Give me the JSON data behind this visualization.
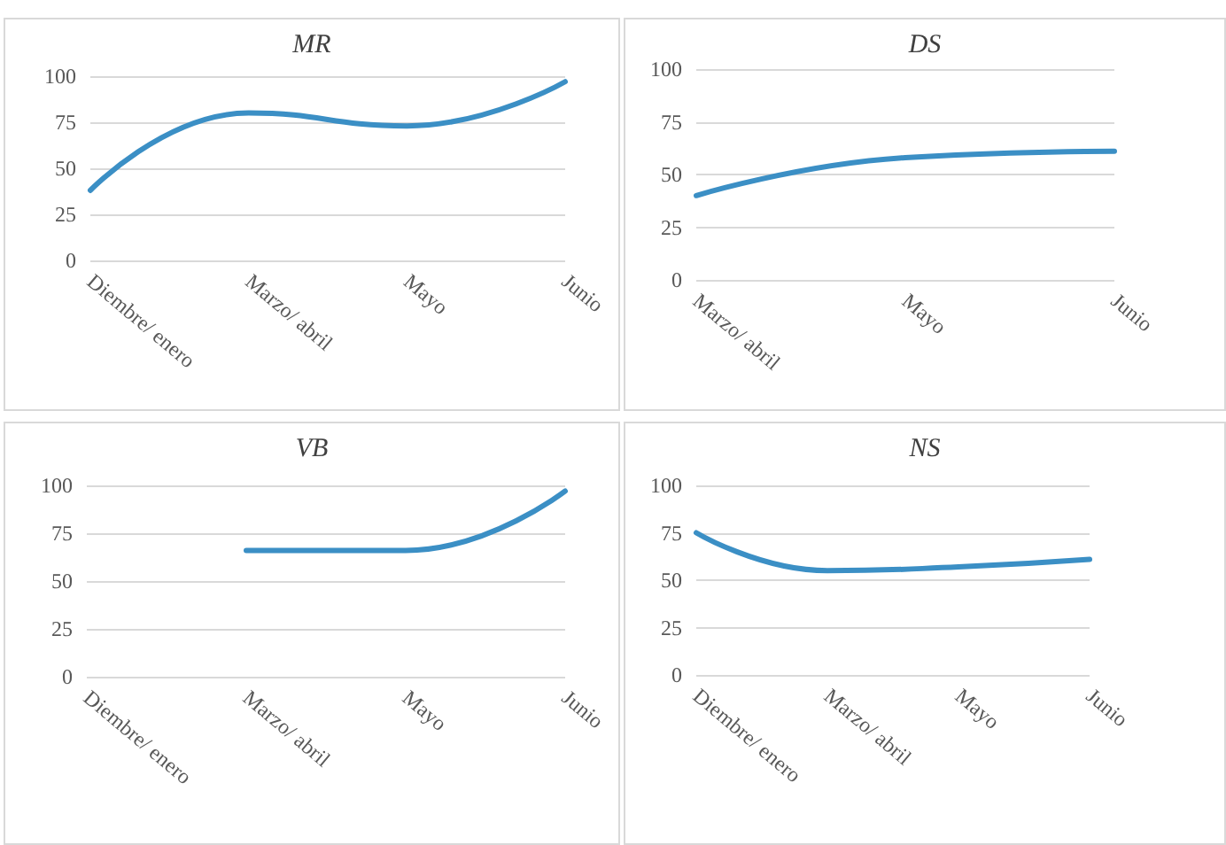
{
  "chart_data": [
    {
      "type": "line",
      "title": "MR",
      "categories": [
        "Diembre/ enero",
        "Marzo/ abril",
        "Mayo",
        "Junio"
      ],
      "values": [
        38,
        80,
        73,
        97
      ],
      "color": "#3b8fc5",
      "ylim": [
        0,
        100
      ],
      "yticks": [
        0,
        25,
        50,
        75,
        100
      ],
      "grid": "y",
      "marker": "none"
    },
    {
      "type": "line",
      "title": "DS",
      "categories": [
        "Marzo/ abril",
        "Mayo",
        "Junio"
      ],
      "values": [
        40,
        58,
        61
      ],
      "color": "#3b8fc5",
      "ylim": [
        0,
        100
      ],
      "yticks": [
        0,
        25,
        50,
        75,
        100
      ],
      "grid": "y",
      "marker": "none"
    },
    {
      "type": "line",
      "title": "VB",
      "categories": [
        "Diembre/ enero",
        "Marzo/ abril",
        "Mayo",
        "Junio"
      ],
      "values": [
        null,
        66,
        66,
        97
      ],
      "color": "#3b8fc5",
      "ylim": [
        0,
        100
      ],
      "yticks": [
        0,
        25,
        50,
        75,
        100
      ],
      "grid": "y",
      "marker": "none"
    },
    {
      "type": "line",
      "title": "NS",
      "categories": [
        "Diembre/ enero",
        "Marzo/ abril",
        "Mayo",
        "Junio"
      ],
      "values": [
        75,
        55,
        57,
        61
      ],
      "color": "#3b8fc5",
      "ylim": [
        0,
        100
      ],
      "yticks": [
        0,
        25,
        50,
        75,
        100
      ],
      "grid": "y",
      "marker": "none"
    }
  ]
}
